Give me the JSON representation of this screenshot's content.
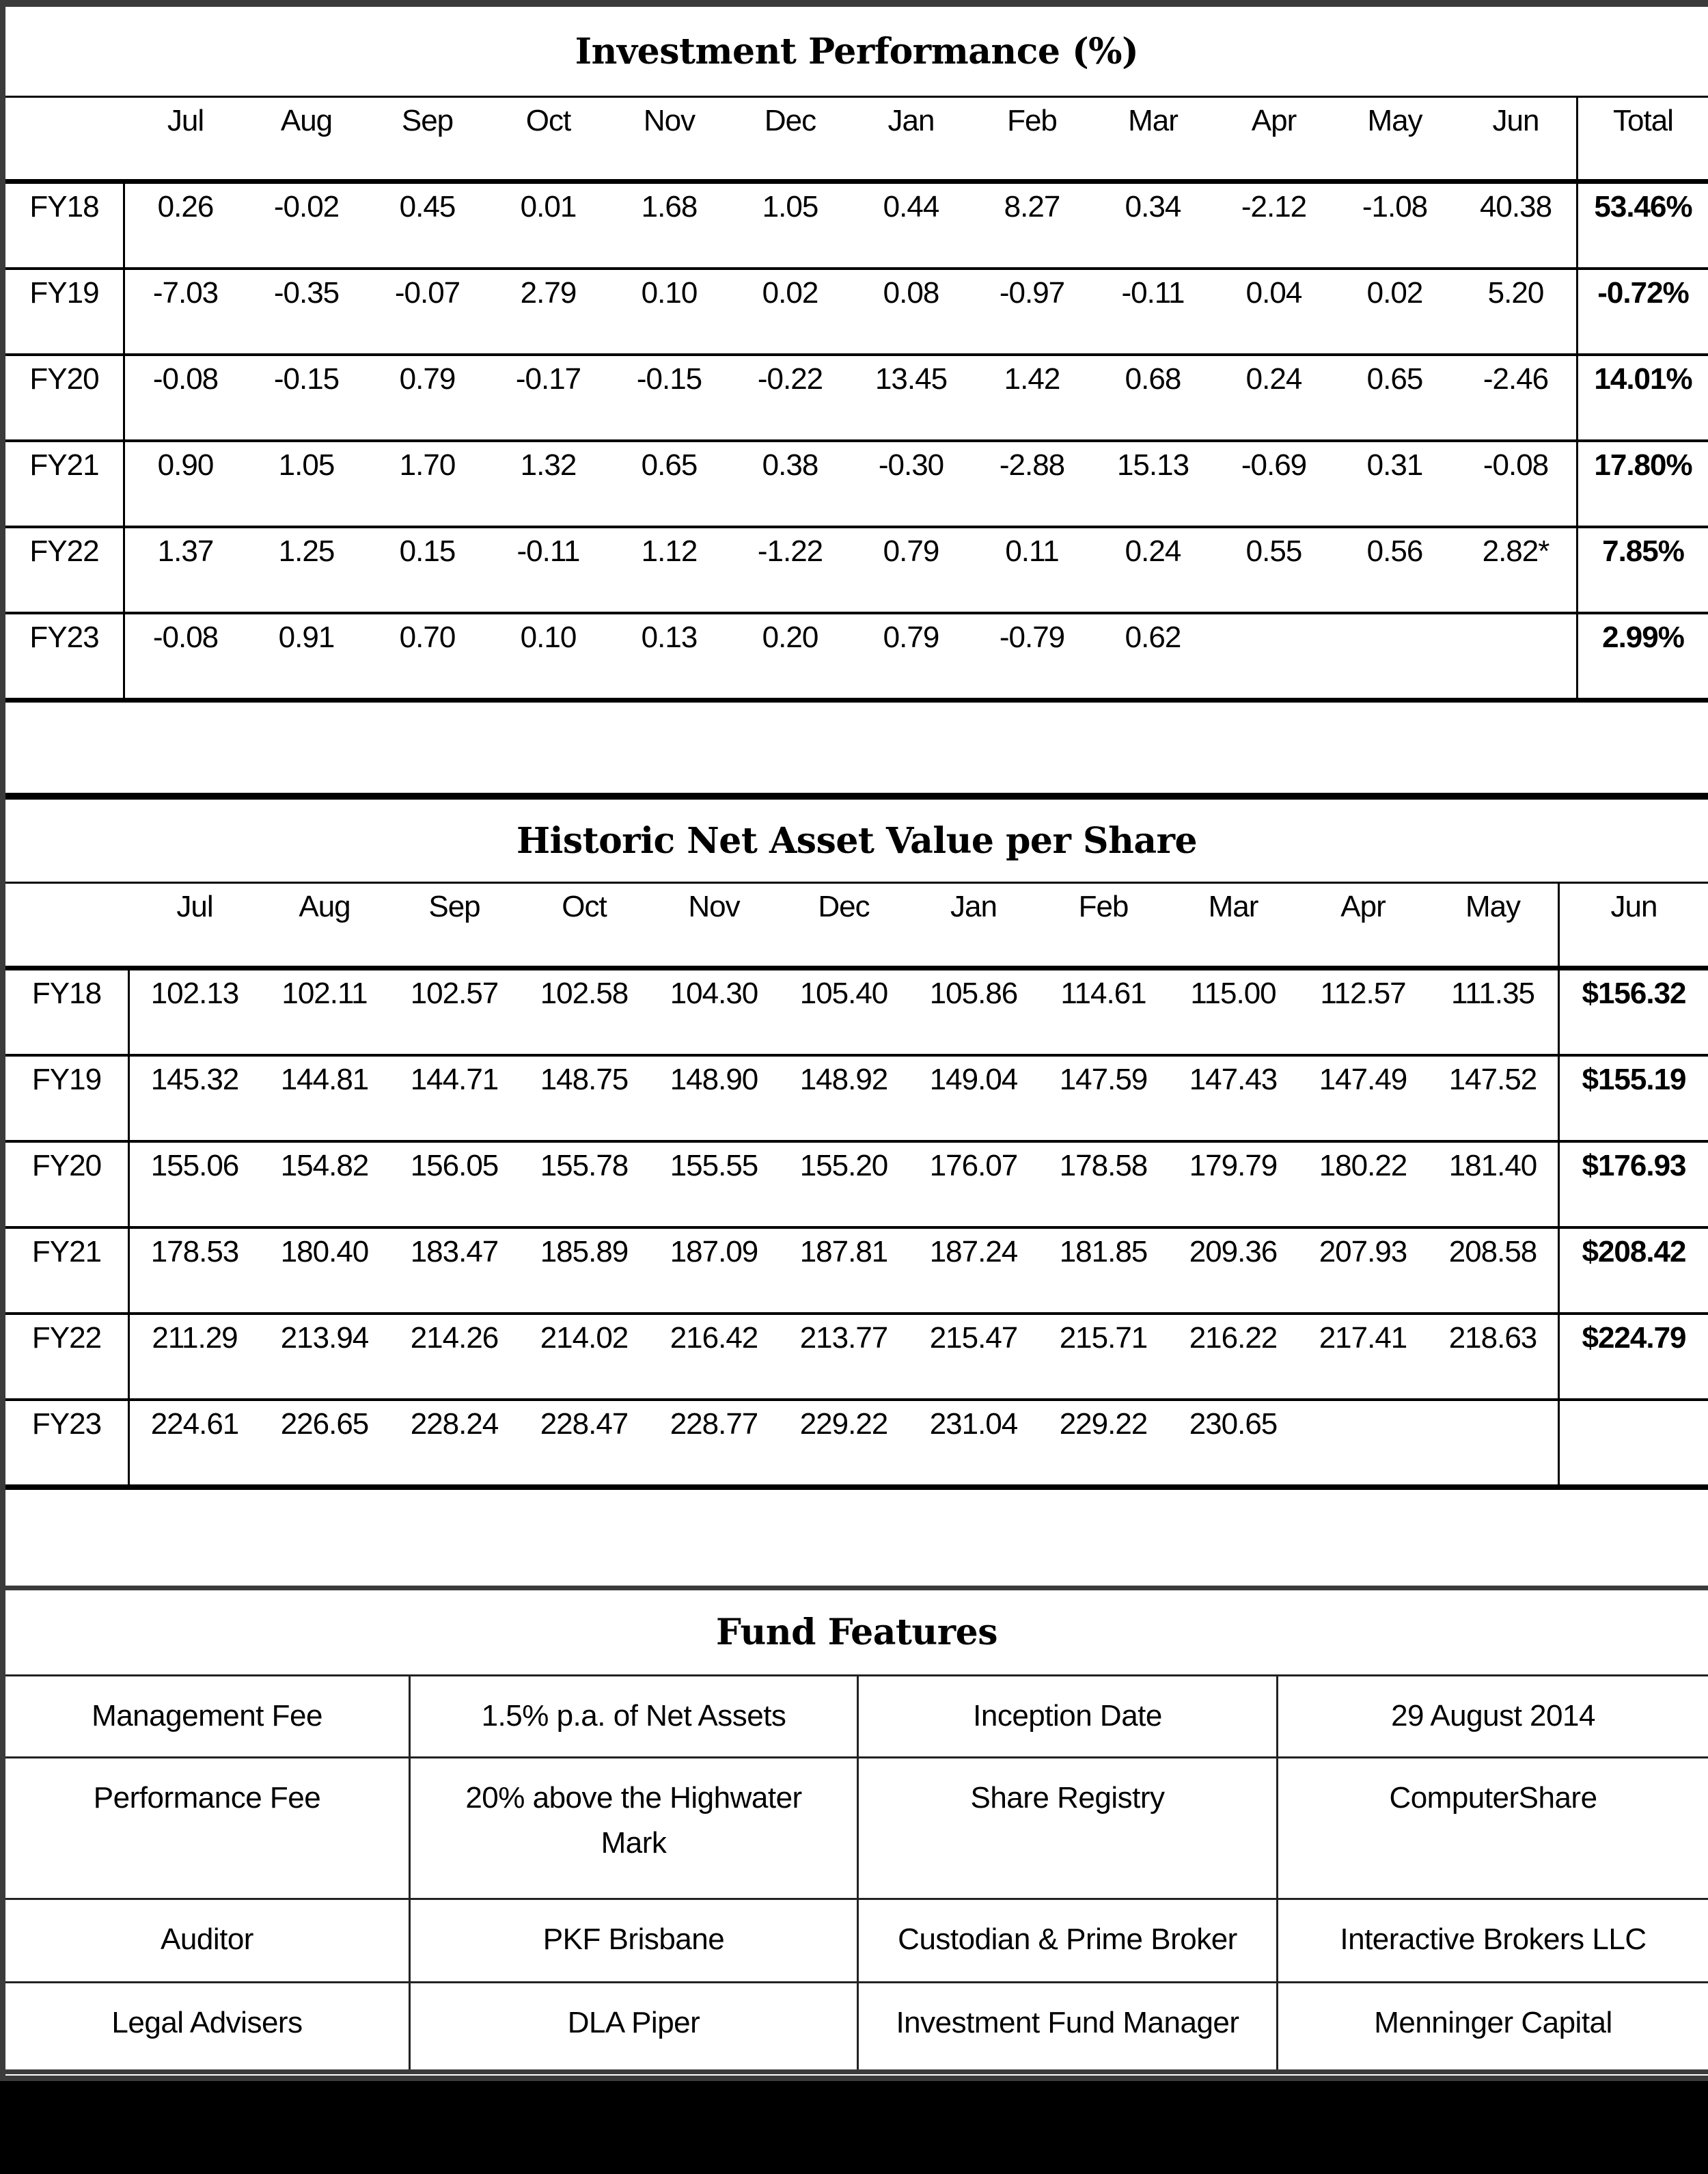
{
  "performance_table": {
    "title": "Investment Performance (%)",
    "columns": [
      "Jul",
      "Aug",
      "Sep",
      "Oct",
      "Nov",
      "Dec",
      "Jan",
      "Feb",
      "Mar",
      "Apr",
      "May",
      "Jun"
    ],
    "total_label": "Total",
    "rows": [
      {
        "label": "FY18",
        "values": [
          "0.26",
          "-0.02",
          "0.45",
          "0.01",
          "1.68",
          "1.05",
          "0.44",
          "8.27",
          "0.34",
          "-2.12",
          "-1.08",
          "40.38"
        ],
        "total": "53.46%"
      },
      {
        "label": "FY19",
        "values": [
          "-7.03",
          "-0.35",
          "-0.07",
          "2.79",
          "0.10",
          "0.02",
          "0.08",
          "-0.97",
          "-0.11",
          "0.04",
          "0.02",
          "5.20"
        ],
        "total": "-0.72%"
      },
      {
        "label": "FY20",
        "values": [
          "-0.08",
          "-0.15",
          "0.79",
          "-0.17",
          "-0.15",
          "-0.22",
          "13.45",
          "1.42",
          "0.68",
          "0.24",
          "0.65",
          "-2.46"
        ],
        "total": "14.01%"
      },
      {
        "label": "FY21",
        "values": [
          "0.90",
          "1.05",
          "1.70",
          "1.32",
          "0.65",
          "0.38",
          "-0.30",
          "-2.88",
          "15.13",
          "-0.69",
          "0.31",
          "-0.08"
        ],
        "total": "17.80%"
      },
      {
        "label": "FY22",
        "values": [
          "1.37",
          "1.25",
          "0.15",
          "-0.11",
          "1.12",
          "-1.22",
          "0.79",
          "0.11",
          "0.24",
          "0.55",
          "0.56",
          "2.82*"
        ],
        "total": "7.85%"
      },
      {
        "label": "FY23",
        "values": [
          "-0.08",
          "0.91",
          "0.70",
          "0.10",
          "0.13",
          "0.20",
          "0.79",
          "-0.79",
          "0.62",
          "",
          "",
          ""
        ],
        "total": "2.99%"
      }
    ]
  },
  "nav_table": {
    "title": "Historic Net Asset Value per Share",
    "columns": [
      "Jul",
      "Aug",
      "Sep",
      "Oct",
      "Nov",
      "Dec",
      "Jan",
      "Feb",
      "Mar",
      "Apr",
      "May"
    ],
    "jun_label": "Jun",
    "rows": [
      {
        "label": "FY18",
        "values": [
          "102.13",
          "102.11",
          "102.57",
          "102.58",
          "104.30",
          "105.40",
          "105.86",
          "114.61",
          "115.00",
          "112.57",
          "111.35"
        ],
        "jun": "$156.32"
      },
      {
        "label": "FY19",
        "values": [
          "145.32",
          "144.81",
          "144.71",
          "148.75",
          "148.90",
          "148.92",
          "149.04",
          "147.59",
          "147.43",
          "147.49",
          "147.52"
        ],
        "jun": "$155.19"
      },
      {
        "label": "FY20",
        "values": [
          "155.06",
          "154.82",
          "156.05",
          "155.78",
          "155.55",
          "155.20",
          "176.07",
          "178.58",
          "179.79",
          "180.22",
          "181.40"
        ],
        "jun": "$176.93"
      },
      {
        "label": "FY21",
        "values": [
          "178.53",
          "180.40",
          "183.47",
          "185.89",
          "187.09",
          "187.81",
          "187.24",
          "181.85",
          "209.36",
          "207.93",
          "208.58"
        ],
        "jun": "$208.42"
      },
      {
        "label": "FY22",
        "values": [
          "211.29",
          "213.94",
          "214.26",
          "214.02",
          "216.42",
          "213.77",
          "215.47",
          "215.71",
          "216.22",
          "217.41",
          "218.63"
        ],
        "jun": "$224.79"
      },
      {
        "label": "FY23",
        "values": [
          "224.61",
          "226.65",
          "228.24",
          "228.47",
          "228.77",
          "229.22",
          "231.04",
          "229.22",
          "230.65",
          "",
          ""
        ],
        "jun": ""
      }
    ]
  },
  "fund_features": {
    "title": "Fund Features",
    "rows": [
      {
        "label1": "Management Fee",
        "value1": "1.5% p.a. of Net Assets",
        "label2": "Inception Date",
        "value2": "29 August 2014"
      },
      {
        "label1": "Performance Fee",
        "value1": "20% above the Highwater Mark",
        "label2": "Share Registry",
        "value2": "ComputerShare"
      },
      {
        "label1": "Auditor",
        "value1": "PKF Brisbane",
        "label2": "Custodian & Prime Broker",
        "value2": "Interactive Brokers LLC"
      },
      {
        "label1": "Legal Advisers",
        "value1": "DLA Piper",
        "label2": "Investment Fund Manager",
        "value2": "Menninger Capital"
      }
    ]
  }
}
